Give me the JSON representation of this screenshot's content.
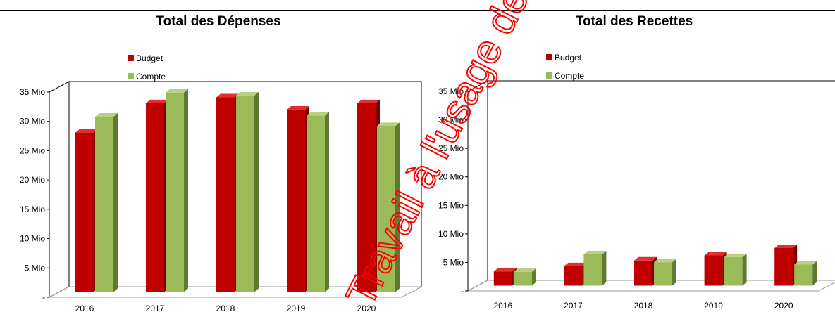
{
  "chart_data": [
    {
      "type": "bar",
      "title": "Total des Dépenses",
      "categories": [
        "2016",
        "2017",
        "2018",
        "2019",
        "2020"
      ],
      "series": [
        {
          "name": "Budget",
          "values": [
            27.2,
            32.2,
            33.2,
            31.1,
            32.2
          ]
        },
        {
          "name": "Compte",
          "values": [
            29.9,
            34.0,
            33.5,
            30.1,
            28.3
          ]
        }
      ],
      "ylim": [
        0,
        35
      ],
      "y_ticks": [
        "-",
        "5 Mio",
        "10 Mio",
        "15 Mio",
        "20 Mio",
        "25 Mio",
        "30 Mio",
        "35 Mio"
      ],
      "legend_position": "top-left",
      "grid": false
    },
    {
      "type": "bar",
      "title": "Total des Recettes",
      "categories": [
        "2016",
        "2017",
        "2018",
        "2019",
        "2020"
      ],
      "series": [
        {
          "name": "Budget",
          "values": [
            2.5,
            3.4,
            4.4,
            5.3,
            6.6
          ]
        },
        {
          "name": "Compte",
          "values": [
            2.4,
            5.5,
            4.1,
            5.0,
            3.7
          ]
        }
      ],
      "ylim": [
        0,
        35
      ],
      "y_ticks": [
        "-",
        "5 Mio",
        "10 Mio",
        "15 Mio",
        "20 Mio",
        "25 Mio",
        "30 Mio",
        "35 Mio"
      ],
      "legend_position": "top-left",
      "grid": false
    }
  ],
  "colors": {
    "budget": "#c00000",
    "budget_side": "#7a0000",
    "budget_top": "#e03030",
    "compte": "#9bbb59",
    "compte_side": "#5f7a30",
    "compte_top": "#b8d080",
    "watermark": "#ff0000"
  },
  "watermark_text": "Travail à l'usage de"
}
